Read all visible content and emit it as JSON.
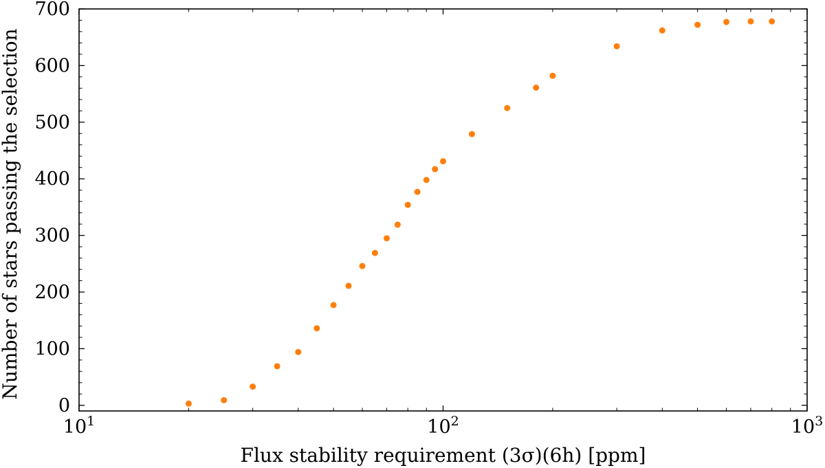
{
  "chart_data": {
    "type": "scatter",
    "xlabel": "Flux stability requirement (3σ)(6h) [ppm]",
    "ylabel": "Number of stars passing the selection",
    "xscale": "log",
    "xlim": [
      10,
      1000
    ],
    "ylim": [
      -10,
      700
    ],
    "x_ticks": [
      {
        "value": 10,
        "base": "10",
        "exp": "1"
      },
      {
        "value": 100,
        "base": "10",
        "exp": "2"
      },
      {
        "value": 1000,
        "base": "10",
        "exp": "3"
      }
    ],
    "y_ticks": [
      0,
      100,
      200,
      300,
      400,
      500,
      600,
      700
    ],
    "grid": false,
    "marker_color": "#ff7f0e",
    "x": [
      20,
      25,
      30,
      35,
      40,
      45,
      50,
      55,
      60,
      65,
      70,
      75,
      80,
      85,
      90,
      95,
      100,
      120,
      150,
      180,
      200,
      300,
      400,
      500,
      600,
      700,
      800
    ],
    "y": [
      3,
      9,
      33,
      69,
      94,
      136,
      177,
      211,
      246,
      269,
      295,
      319,
      354,
      377,
      398,
      417,
      431,
      479,
      525,
      561,
      582,
      634,
      662,
      672,
      677,
      678,
      678
    ]
  }
}
